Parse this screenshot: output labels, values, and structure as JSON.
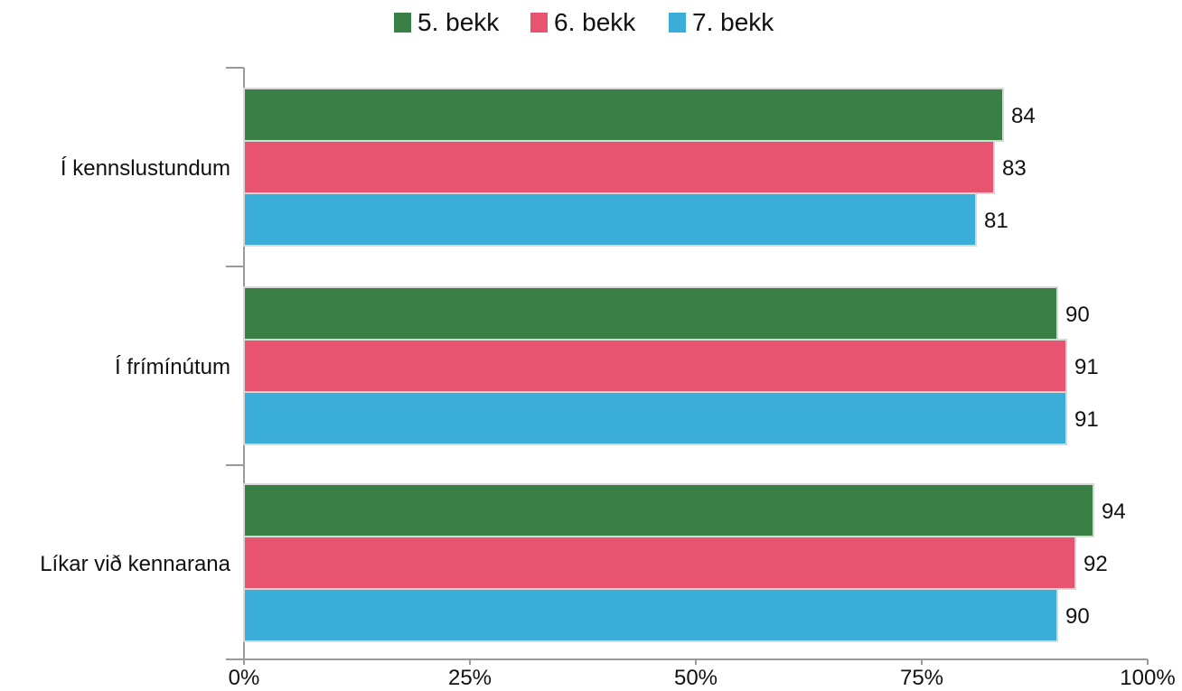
{
  "chart_data": {
    "type": "bar",
    "orientation": "horizontal",
    "categories": [
      "Í kennslustundum",
      "Í frímínútum",
      "Líkar við kennarana"
    ],
    "series": [
      {
        "name": "5. bekk",
        "color": "#3a7f45",
        "values": [
          84,
          90,
          94
        ]
      },
      {
        "name": "6. bekk",
        "color": "#e85470",
        "values": [
          83,
          91,
          92
        ]
      },
      {
        "name": "7. bekk",
        "color": "#3aaed8",
        "values": [
          81,
          91,
          90
        ]
      }
    ],
    "xlim": [
      0,
      100
    ],
    "x_ticks": [
      0,
      25,
      50,
      75,
      100
    ],
    "x_tick_labels": [
      "0%",
      "25%",
      "50%",
      "75%",
      "100%"
    ],
    "legend_position": "top",
    "grid": false
  }
}
